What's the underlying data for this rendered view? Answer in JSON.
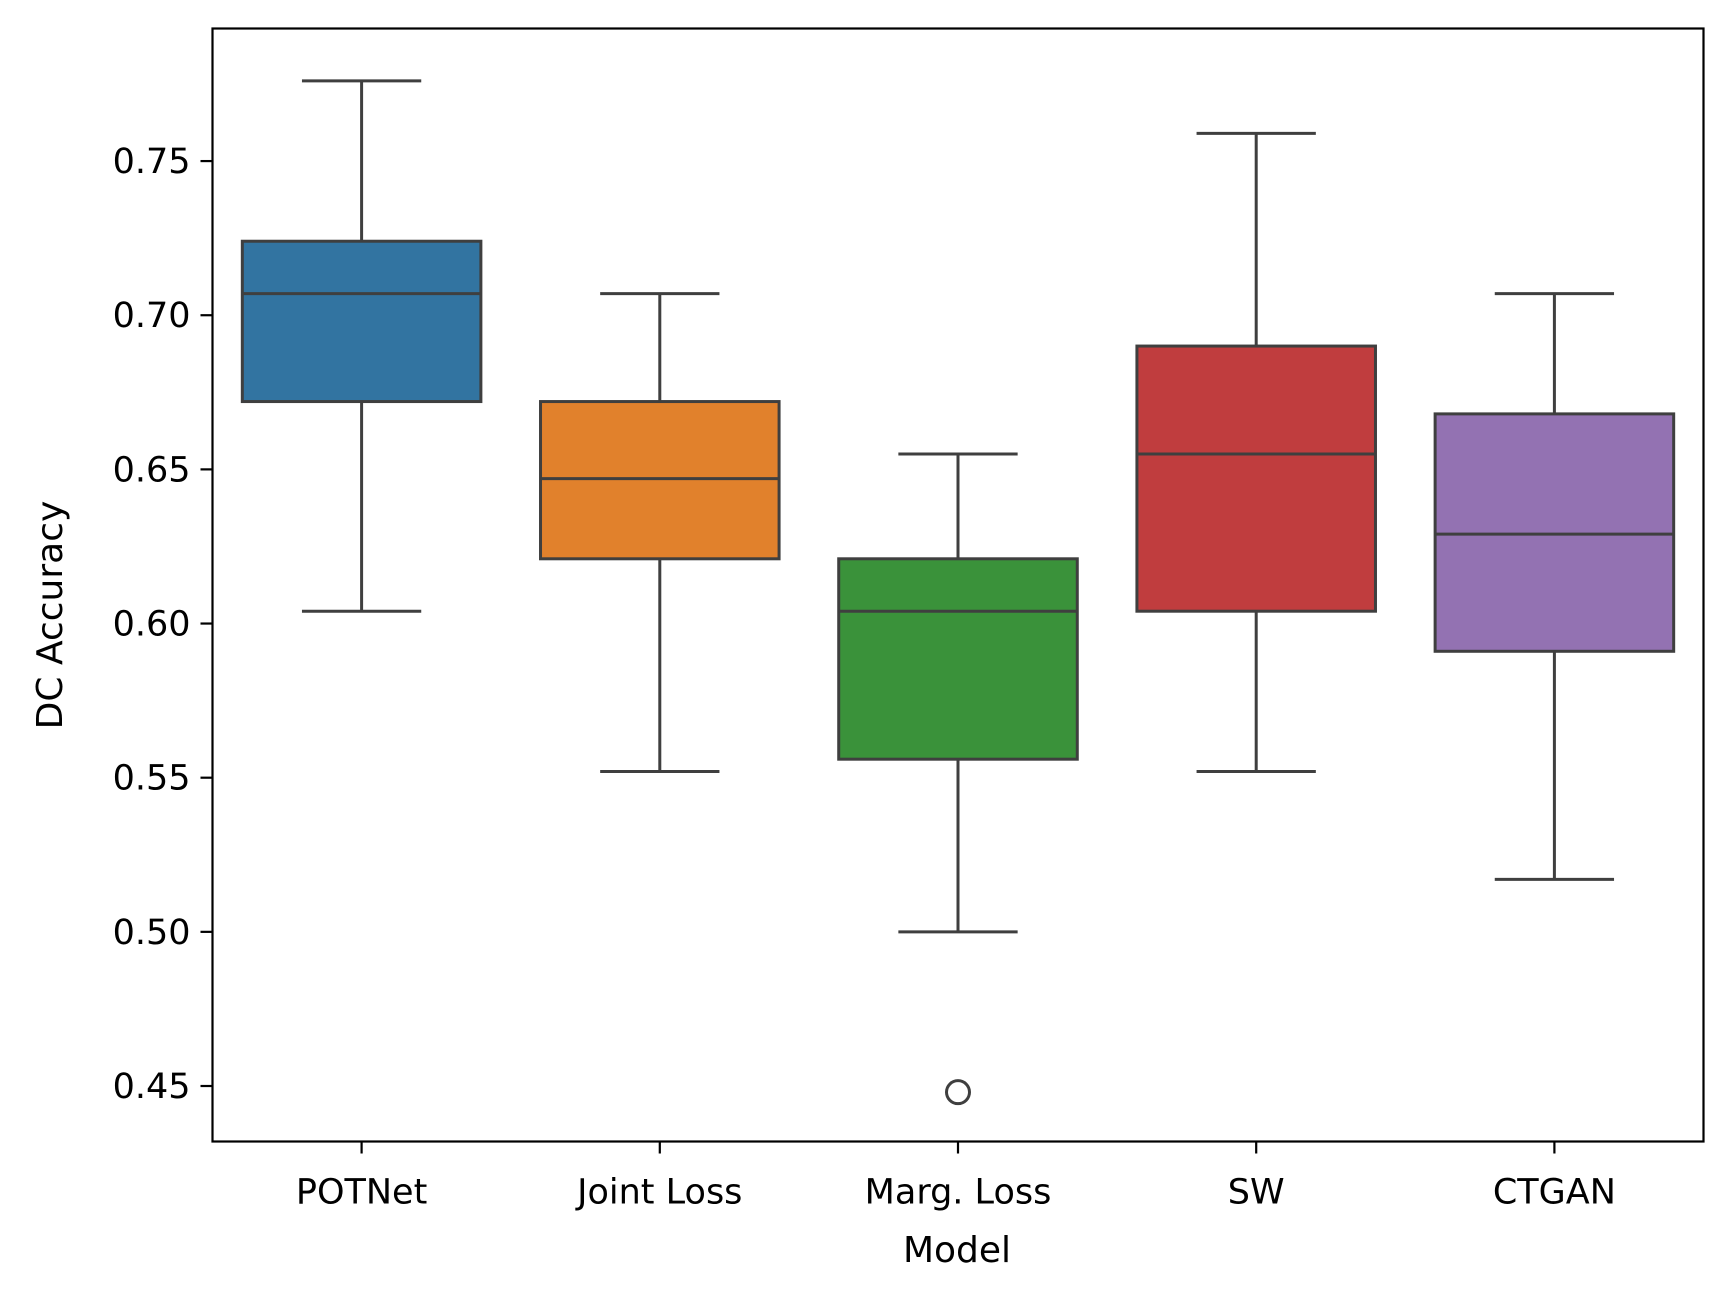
{
  "chart_data": {
    "type": "boxplot",
    "title": "",
    "xlabel": "Model",
    "ylabel": "DC Accuracy",
    "ylim": [
      0.432,
      0.793
    ],
    "yticks": [
      0.45,
      0.5,
      0.55,
      0.6,
      0.65,
      0.7,
      0.75
    ],
    "ytick_labels": [
      "0.45",
      "0.50",
      "0.55",
      "0.60",
      "0.65",
      "0.70",
      "0.75"
    ],
    "grid": false,
    "legend": "none",
    "categories": [
      "POTNet",
      "Joint Loss",
      "Marg. Loss",
      "SW",
      "CTGAN"
    ],
    "boxes": [
      {
        "name": "POTNet",
        "whisker_low": 0.604,
        "q1": 0.672,
        "median": 0.707,
        "q3": 0.724,
        "whisker_high": 0.776,
        "outliers": [],
        "color": "#3274a1"
      },
      {
        "name": "Joint Loss",
        "whisker_low": 0.552,
        "q1": 0.621,
        "median": 0.647,
        "q3": 0.672,
        "whisker_high": 0.707,
        "outliers": [],
        "color": "#e1812c"
      },
      {
        "name": "Marg. Loss",
        "whisker_low": 0.5,
        "q1": 0.556,
        "median": 0.604,
        "q3": 0.621,
        "whisker_high": 0.655,
        "outliers": [
          0.448
        ],
        "color": "#3a923a"
      },
      {
        "name": "SW",
        "whisker_low": 0.552,
        "q1": 0.604,
        "median": 0.655,
        "q3": 0.69,
        "whisker_high": 0.759,
        "outliers": [],
        "color": "#c03d3e"
      },
      {
        "name": "CTGAN",
        "whisker_low": 0.517,
        "q1": 0.591,
        "median": 0.629,
        "q3": 0.668,
        "whisker_high": 0.707,
        "outliers": [],
        "color": "#9372b2"
      }
    ],
    "line_color": "#3f3f3f"
  }
}
